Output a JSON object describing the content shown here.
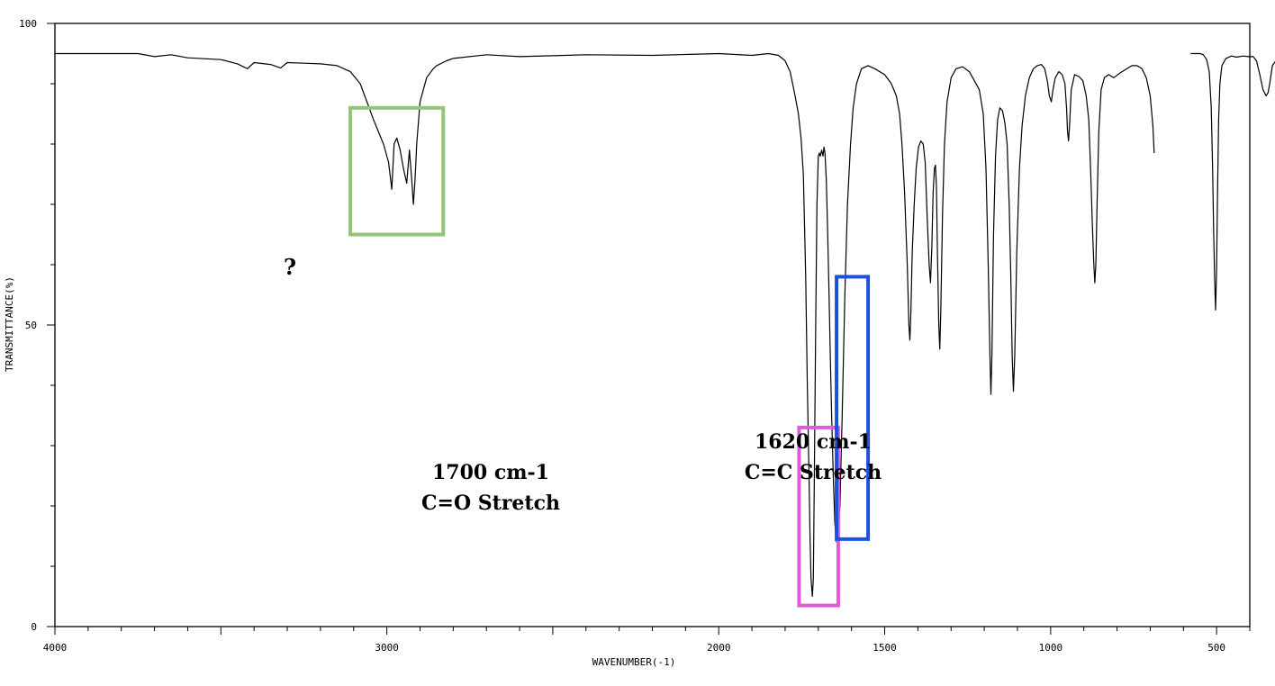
{
  "chart_data": {
    "type": "line",
    "title": "",
    "xlabel": "WAVENUMBER(-1)",
    "ylabel": "TRANSMITTANCE(%)",
    "xlim": [
      4000,
      400
    ],
    "ylim": [
      0,
      100
    ],
    "x_ticks": [
      4000,
      3000,
      2000,
      1500,
      1000,
      500
    ],
    "y_ticks": [
      0,
      50,
      100
    ],
    "grid": false,
    "series": [
      {
        "name": "IR spectrum",
        "segments": [
          [
            [
              4000,
              95
            ],
            [
              3750,
              95
            ],
            [
              3700,
              94.5
            ],
            [
              3650,
              94.8
            ],
            [
              3600,
              94.3
            ],
            [
              3500,
              94
            ],
            [
              3450,
              93.3
            ],
            [
              3420,
              92.5
            ],
            [
              3400,
              93.5
            ],
            [
              3350,
              93.2
            ],
            [
              3320,
              92.6
            ],
            [
              3300,
              93.5
            ],
            [
              3250,
              93.4
            ],
            [
              3200,
              93.3
            ],
            [
              3150,
              93
            ],
            [
              3110,
              92
            ],
            [
              3080,
              90
            ],
            [
              3060,
              87
            ],
            [
              3040,
              84
            ],
            [
              3025,
              82
            ],
            [
              3010,
              80
            ],
            [
              2995,
              77
            ],
            [
              2985,
              72.5
            ],
            [
              2978,
              80
            ],
            [
              2970,
              81
            ],
            [
              2960,
              79
            ],
            [
              2950,
              76
            ],
            [
              2940,
              73.5
            ],
            [
              2932,
              79
            ],
            [
              2925,
              74
            ],
            [
              2920,
              70
            ],
            [
              2915,
              74
            ],
            [
              2910,
              80
            ],
            [
              2900,
              87
            ],
            [
              2880,
              91
            ],
            [
              2860,
              92.5
            ],
            [
              2850,
              93
            ],
            [
              2820,
              93.8
            ],
            [
              2800,
              94.2
            ],
            [
              2700,
              94.8
            ],
            [
              2600,
              94.5
            ],
            [
              2400,
              94.8
            ],
            [
              2200,
              94.7
            ],
            [
              2000,
              95
            ],
            [
              1900,
              94.7
            ],
            [
              1850,
              95
            ],
            [
              1820,
              94.7
            ],
            [
              1800,
              93.8
            ],
            [
              1785,
              92
            ],
            [
              1770,
              88
            ],
            [
              1760,
              85
            ],
            [
              1752,
              81
            ],
            [
              1745,
              75
            ],
            [
              1738,
              58
            ],
            [
              1733,
              40
            ],
            [
              1728,
              25
            ],
            [
              1725,
              15
            ],
            [
              1722,
              8
            ],
            [
              1718,
              5
            ],
            [
              1715,
              8
            ],
            [
              1712,
              25
            ],
            [
              1708,
              50
            ],
            [
              1704,
              70
            ],
            [
              1700,
              78
            ],
            [
              1697,
              78.5
            ],
            [
              1694,
              78
            ],
            [
              1690,
              79
            ],
            [
              1686,
              78
            ],
            [
              1683,
              79.5
            ],
            [
              1680,
              78.5
            ],
            [
              1676,
              74
            ],
            [
              1672,
              66
            ],
            [
              1668,
              56
            ],
            [
              1664,
              45
            ],
            [
              1660,
              35
            ],
            [
              1655,
              25
            ],
            [
              1650,
              17
            ],
            [
              1645,
              14
            ],
            [
              1640,
              14.5
            ],
            [
              1635,
              20
            ],
            [
              1628,
              35
            ],
            [
              1620,
              55
            ],
            [
              1612,
              70
            ],
            [
              1603,
              80
            ],
            [
              1595,
              86
            ],
            [
              1585,
              90
            ],
            [
              1570,
              92.5
            ],
            [
              1550,
              93
            ],
            [
              1530,
              92.5
            ],
            [
              1500,
              91.5
            ],
            [
              1480,
              90
            ],
            [
              1465,
              88
            ],
            [
              1455,
              85
            ],
            [
              1448,
              80
            ],
            [
              1440,
              72
            ],
            [
              1432,
              60
            ],
            [
              1427,
              50
            ],
            [
              1424,
              47.5
            ],
            [
              1421,
              52
            ],
            [
              1417,
              62
            ],
            [
              1411,
              70
            ],
            [
              1405,
              76
            ],
            [
              1398,
              79.5
            ],
            [
              1391,
              80.5
            ],
            [
              1384,
              80
            ],
            [
              1378,
              77
            ],
            [
              1372,
              68
            ],
            [
              1366,
              60
            ],
            [
              1362,
              57
            ],
            [
              1358,
              63
            ],
            [
              1354,
              72
            ],
            [
              1350,
              76
            ],
            [
              1347,
              76.5
            ],
            [
              1344,
              73
            ],
            [
              1341,
              62
            ],
            [
              1337,
              50
            ],
            [
              1334,
              46
            ],
            [
              1331,
              52
            ],
            [
              1326,
              68
            ],
            [
              1320,
              80
            ],
            [
              1312,
              87
            ],
            [
              1300,
              91
            ],
            [
              1285,
              92.5
            ],
            [
              1265,
              92.8
            ],
            [
              1245,
              92
            ],
            [
              1230,
              90.5
            ],
            [
              1215,
              89
            ],
            [
              1203,
              85
            ],
            [
              1195,
              76
            ],
            [
              1188,
              60
            ],
            [
              1183,
              45
            ],
            [
              1180,
              38.5
            ],
            [
              1177,
              45
            ],
            [
              1172,
              65
            ],
            [
              1166,
              78
            ],
            [
              1160,
              84
            ],
            [
              1153,
              86
            ],
            [
              1145,
              85.5
            ],
            [
              1138,
              83.5
            ],
            [
              1131,
              80
            ],
            [
              1125,
              70
            ],
            [
              1120,
              58
            ],
            [
              1116,
              45
            ],
            [
              1112,
              39
            ],
            [
              1108,
              45
            ],
            [
              1102,
              62
            ],
            [
              1094,
              76
            ],
            [
              1086,
              83
            ],
            [
              1076,
              88
            ],
            [
              1064,
              91
            ],
            [
              1052,
              92.5
            ],
            [
              1040,
              93
            ],
            [
              1028,
              93.2
            ],
            [
              1018,
              92.5
            ],
            [
              1010,
              90.5
            ],
            [
              1004,
              88
            ],
            [
              998,
              87
            ],
            [
              993,
              89
            ],
            [
              986,
              91
            ],
            [
              975,
              92
            ],
            [
              965,
              91.5
            ],
            [
              957,
              90
            ],
            [
              952,
              86
            ],
            [
              949,
              82
            ],
            [
              946,
              80.5
            ],
            [
              943,
              83
            ],
            [
              938,
              89
            ],
            [
              928,
              91.5
            ],
            [
              915,
              91.2
            ],
            [
              903,
              90.5
            ],
            [
              893,
              88
            ],
            [
              885,
              84
            ],
            [
              879,
              75
            ],
            [
              874,
              66
            ],
            [
              870,
              60
            ],
            [
              867,
              57
            ],
            [
              864,
              60
            ],
            [
              860,
              70
            ],
            [
              855,
              82
            ],
            [
              848,
              89
            ],
            [
              838,
              91
            ],
            [
              825,
              91.5
            ],
            [
              810,
              91
            ],
            [
              790,
              91.8
            ],
            [
              770,
              92.5
            ],
            [
              755,
              93
            ],
            [
              740,
              93
            ],
            [
              725,
              92.5
            ],
            [
              712,
              91
            ],
            [
              700,
              88
            ],
            [
              692,
              83
            ],
            [
              688,
              78.5
            ]
          ],
          [
            [
              578,
              95
            ],
            [
              550,
              95
            ],
            [
              540,
              94.8
            ],
            [
              530,
              94
            ],
            [
              522,
              92
            ],
            [
              516,
              86
            ],
            [
              512,
              76
            ],
            [
              509,
              66
            ],
            [
              506,
              58
            ],
            [
              503,
              52.5
            ],
            [
              500,
              59
            ],
            [
              497,
              72
            ],
            [
              494,
              84
            ],
            [
              490,
              90
            ],
            [
              484,
              93
            ],
            [
              472,
              94.2
            ],
            [
              455,
              94.6
            ],
            [
              440,
              94.4
            ],
            [
              420,
              94.6
            ],
            [
              405,
              94.5
            ],
            [
              390,
              94.5
            ],
            [
              380,
              93.8
            ],
            [
              370,
              91.5
            ],
            [
              360,
              89
            ],
            [
              351,
              88
            ],
            [
              345,
              88.5
            ],
            [
              340,
              90
            ],
            [
              332,
              93
            ],
            [
              322,
              93.8
            ],
            [
              315,
              93.5
            ],
            [
              305,
              93.6
            ],
            [
              300,
              94
            ]
          ]
        ]
      }
    ],
    "annotations": [
      {
        "text": "?"
      },
      {
        "line1": "1700 cm-1",
        "line2": "C=O Stretch"
      },
      {
        "line1": "1620 cm-1",
        "line2": "C=C Stretch"
      }
    ],
    "highlight_boxes": [
      {
        "label": "?",
        "color": "#92c47a",
        "x_range": [
          3110,
          2830
        ],
        "y_range": [
          65,
          86
        ]
      },
      {
        "label": "C=O Stretch",
        "color": "#e05ae0",
        "x_range": [
          1758,
          1640
        ],
        "y_range": [
          3.5,
          33
        ]
      },
      {
        "label": "C=C Stretch",
        "color": "#1f4fe0",
        "x_range": [
          1645,
          1550
        ],
        "y_range": [
          14.5,
          58
        ]
      }
    ]
  }
}
